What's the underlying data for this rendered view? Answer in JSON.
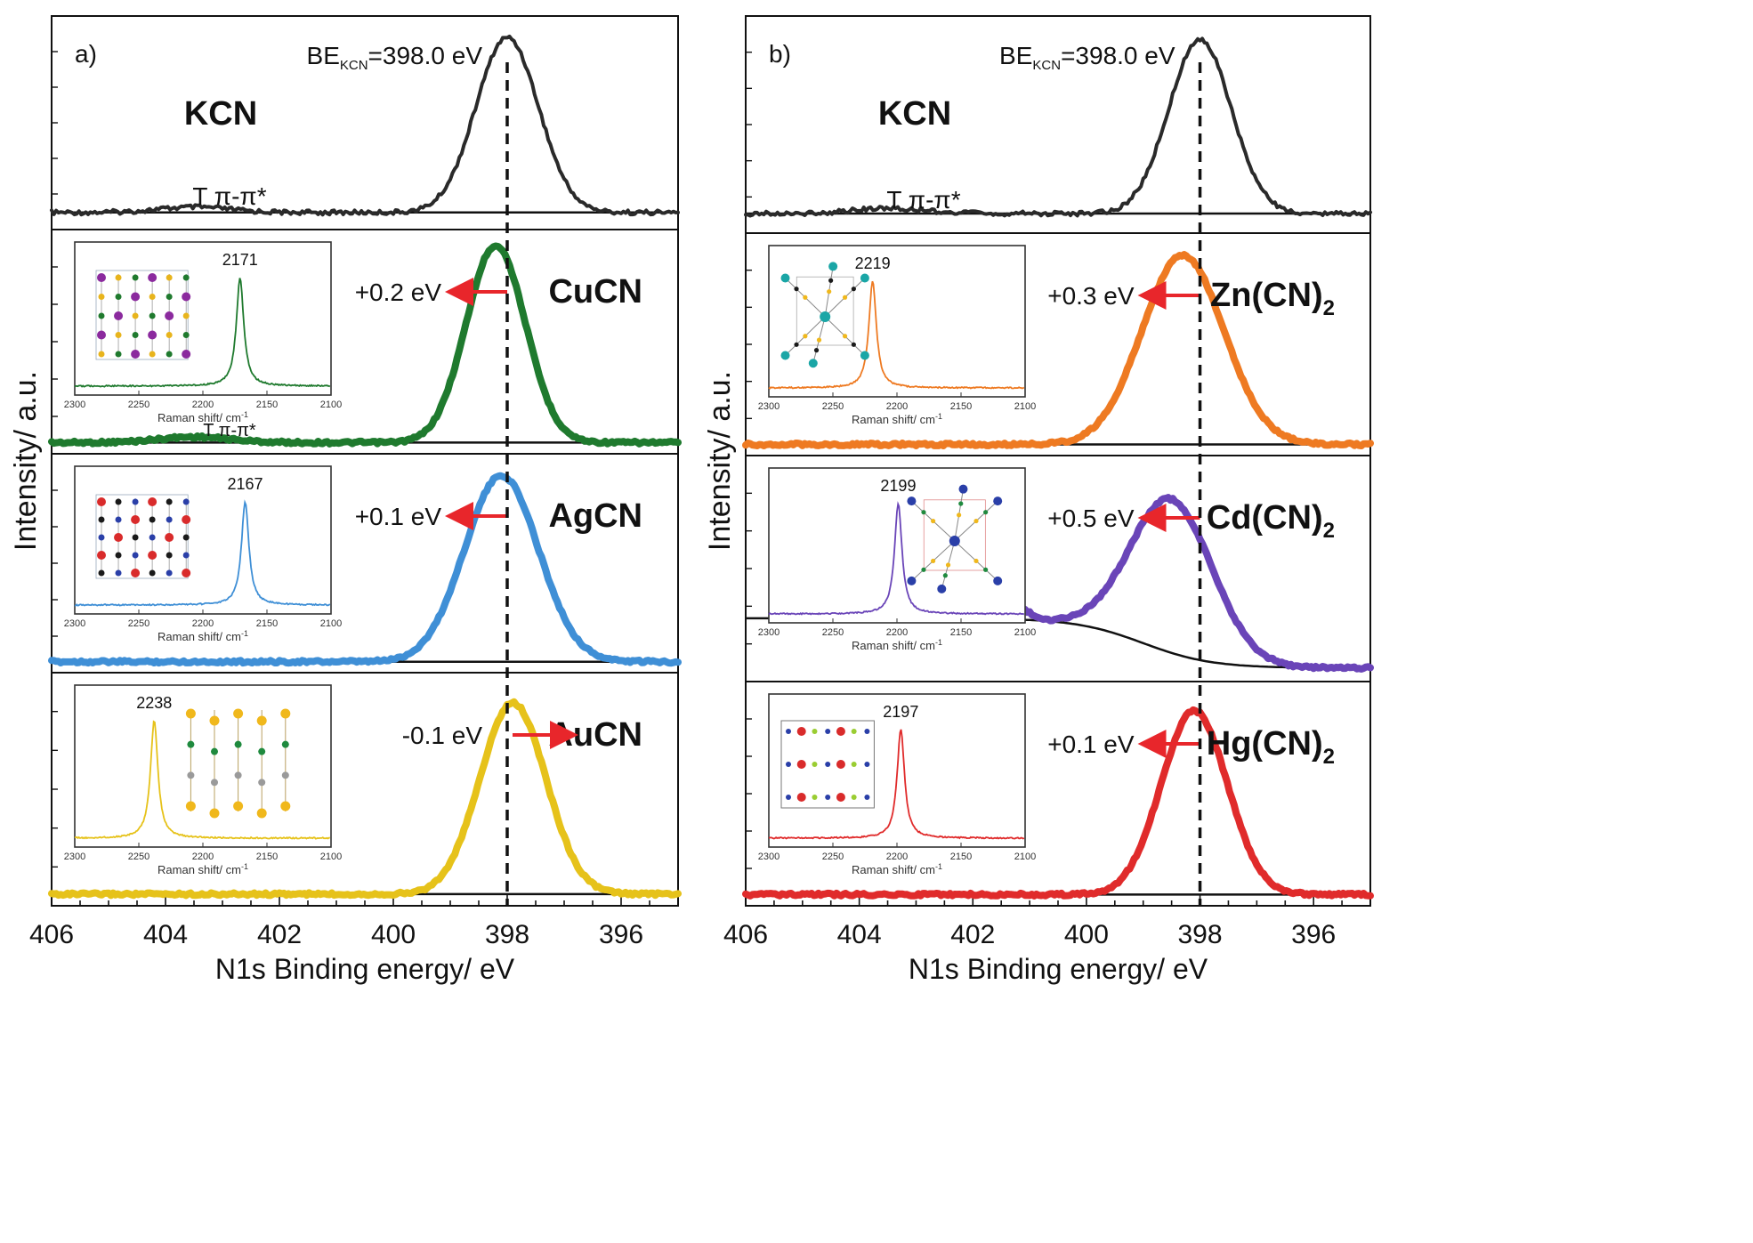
{
  "chart_data": [
    {
      "panel_label": "a)",
      "type": "line",
      "xlabel": "N1s Binding energy/ eV",
      "ylabel": "Intensity/ a.u.",
      "xlim": [
        406,
        395
      ],
      "xticks": [
        "406",
        "404",
        "402",
        "400",
        "398",
        "396"
      ],
      "reference": {
        "x": 398.0,
        "be_main": "BE",
        "be_sub": "KCN",
        "be_tail": "=398.0 eV"
      },
      "satellite_label": "T π-π*",
      "series": [
        {
          "name": "KCN",
          "name_main": "KCN",
          "name_sub": "",
          "color": "#2a2a2a",
          "peak": 398.0,
          "shift_label": "",
          "shift_dir": 0,
          "satellite": true,
          "background_step": 0,
          "inset": null
        },
        {
          "name": "CuCN",
          "name_main": "CuCN",
          "name_sub": "",
          "color": "#1f7a2e",
          "peak": 398.2,
          "shift_label": "+0.2 eV",
          "shift_dir": -1,
          "satellite": true,
          "background_step": 0,
          "inset": {
            "peak_label": "2171",
            "peak_x": 2171,
            "xticks": [
              "2300",
              "2250",
              "2200",
              "2150",
              "2100"
            ],
            "xlabel": "Raman shift/ cm",
            "xlabel_sup": "-1",
            "structure": "cubic",
            "structure_colors": [
              "#8b2a9e",
              "#e8b41c",
              "#1f7a2e"
            ]
          }
        },
        {
          "name": "AgCN",
          "name_main": "AgCN",
          "name_sub": "",
          "color": "#3f8fd6",
          "peak": 398.1,
          "shift_label": "+0.1 eV",
          "shift_dir": -1,
          "satellite": false,
          "background_step": 0,
          "inset": {
            "peak_label": "2167",
            "peak_x": 2167,
            "xticks": [
              "2300",
              "2250",
              "2200",
              "2150",
              "2100"
            ],
            "xlabel": "Raman shift/ cm",
            "xlabel_sup": "-1",
            "structure": "cubic",
            "structure_colors": [
              "#d92b2b",
              "#1a1a1a",
              "#2a3fa8"
            ]
          }
        },
        {
          "name": "AuCN",
          "name_main": "AuCN",
          "name_sub": "",
          "color": "#e6c21a",
          "peak": 397.9,
          "shift_label": "-0.1 eV",
          "shift_dir": 1,
          "satellite": false,
          "background_step": 0,
          "inset": {
            "peak_label": "2238",
            "peak_x": 2238,
            "xticks": [
              "2300",
              "2250",
              "2200",
              "2150",
              "2100"
            ],
            "xlabel": "Raman shift/ cm",
            "xlabel_sup": "-1",
            "structure": "chains",
            "structure_colors": [
              "#f0b81c",
              "#1f8a3e",
              "#9a9a9a"
            ]
          }
        }
      ]
    },
    {
      "panel_label": "b)",
      "type": "line",
      "xlabel": "N1s Binding energy/ eV",
      "ylabel": "Intensity/ a.u.",
      "xlim": [
        406,
        395
      ],
      "xticks": [
        "406",
        "404",
        "402",
        "400",
        "398",
        "396"
      ],
      "reference": {
        "x": 398.0,
        "be_main": "BE",
        "be_sub": "KCN",
        "be_tail": "=398.0 eV"
      },
      "satellite_label": "T π-π*",
      "series": [
        {
          "name": "KCN",
          "name_main": "KCN",
          "name_sub": "",
          "color": "#2a2a2a",
          "peak": 398.0,
          "shift_label": "",
          "shift_dir": 0,
          "satellite": true,
          "background_step": 0,
          "inset": null
        },
        {
          "name": "Zn(CN)2",
          "name_main": "Zn(CN)",
          "name_sub": "2",
          "color": "#ee7a22",
          "peak": 398.3,
          "shift_label": "+0.3 eV",
          "shift_dir": -1,
          "satellite": false,
          "background_step": 0,
          "inset": {
            "peak_label": "2219",
            "peak_x": 2219,
            "xticks": [
              "2300",
              "2250",
              "2200",
              "2150",
              "2100"
            ],
            "xlabel": "Raman shift/ cm",
            "xlabel_sup": "-1",
            "structure": "tetra",
            "structure_colors": [
              "#1aa6a6",
              "#f0b81c",
              "#1a1a1a"
            ]
          }
        },
        {
          "name": "Cd(CN)2",
          "name_main": "Cd(CN)",
          "name_sub": "2",
          "color": "#6a45b8",
          "peak": 398.5,
          "shift_label": "+0.5 eV",
          "shift_dir": -1,
          "satellite": false,
          "background_step": 1,
          "inset": {
            "peak_label": "2199",
            "peak_x": 2199,
            "xticks": [
              "2300",
              "2250",
              "2200",
              "2150",
              "2100"
            ],
            "xlabel": "Raman shift/ cm",
            "xlabel_sup": "-1",
            "structure": "tetra",
            "structure_colors": [
              "#2a3fa8",
              "#f0b81c",
              "#1f8a3e"
            ]
          }
        },
        {
          "name": "Hg(CN)2",
          "name_main": "Hg(CN)",
          "name_sub": "2",
          "color": "#e02b2b",
          "peak": 398.1,
          "shift_label": "+0.1 eV",
          "shift_dir": -1,
          "satellite": false,
          "background_step": 0,
          "inset": {
            "peak_label": "2197",
            "peak_x": 2197,
            "xticks": [
              "2300",
              "2250",
              "2200",
              "2150",
              "2100"
            ],
            "xlabel": "Raman shift/ cm",
            "xlabel_sup": "-1",
            "structure": "molecular",
            "structure_colors": [
              "#d92b2b",
              "#2a3fa8",
              "#9acd32"
            ]
          }
        }
      ]
    }
  ]
}
